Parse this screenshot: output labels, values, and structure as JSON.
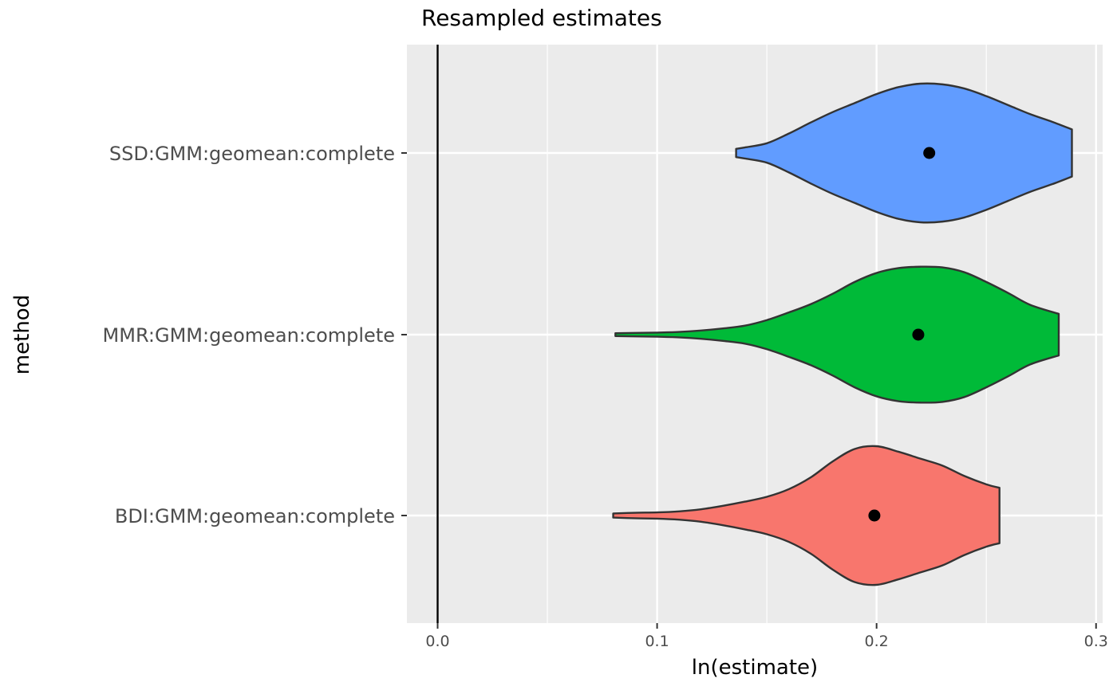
{
  "chart_data": {
    "type": "violin",
    "orientation": "horizontal",
    "title": "Resampled estimates",
    "xlabel": "ln(estimate)",
    "ylabel": "method",
    "xlim": [
      -0.014,
      0.303
    ],
    "x_ticks": [
      0.0,
      0.1,
      0.2,
      0.3
    ],
    "x_tick_labels": [
      "0.0",
      "0.1",
      "0.2",
      "0.3"
    ],
    "reference_line_x": 0.0,
    "grid": true,
    "legend": "none",
    "panel_background": "#EBEBEB",
    "grid_color": "#FFFFFF",
    "outline_color": "#333333",
    "series": [
      {
        "category": "SSD:GMM:geomean:complete",
        "color": "#619CFF",
        "point": 0.224,
        "density": [
          [
            0.136,
            0.06
          ],
          [
            0.14,
            0.08
          ],
          [
            0.15,
            0.14
          ],
          [
            0.16,
            0.28
          ],
          [
            0.17,
            0.44
          ],
          [
            0.18,
            0.59
          ],
          [
            0.19,
            0.72
          ],
          [
            0.2,
            0.85
          ],
          [
            0.21,
            0.95
          ],
          [
            0.22,
            1.0
          ],
          [
            0.23,
            0.99
          ],
          [
            0.24,
            0.93
          ],
          [
            0.25,
            0.82
          ],
          [
            0.26,
            0.69
          ],
          [
            0.27,
            0.56
          ],
          [
            0.28,
            0.45
          ],
          [
            0.289,
            0.34
          ]
        ]
      },
      {
        "category": "MMR:GMM:geomean:complete",
        "color": "#00BA38",
        "point": 0.219,
        "density": [
          [
            0.081,
            0.02
          ],
          [
            0.09,
            0.025
          ],
          [
            0.1,
            0.03
          ],
          [
            0.11,
            0.04
          ],
          [
            0.12,
            0.06
          ],
          [
            0.13,
            0.09
          ],
          [
            0.14,
            0.13
          ],
          [
            0.15,
            0.21
          ],
          [
            0.16,
            0.32
          ],
          [
            0.17,
            0.44
          ],
          [
            0.18,
            0.59
          ],
          [
            0.19,
            0.76
          ],
          [
            0.2,
            0.89
          ],
          [
            0.21,
            0.96
          ],
          [
            0.22,
            0.98
          ],
          [
            0.23,
            0.97
          ],
          [
            0.24,
            0.9
          ],
          [
            0.25,
            0.76
          ],
          [
            0.26,
            0.6
          ],
          [
            0.27,
            0.43
          ],
          [
            0.283,
            0.3
          ]
        ]
      },
      {
        "category": "BDI:GMM:geomean:complete",
        "color": "#F8766D",
        "point": 0.199,
        "density": [
          [
            0.08,
            0.03
          ],
          [
            0.09,
            0.04
          ],
          [
            0.1,
            0.045
          ],
          [
            0.11,
            0.06
          ],
          [
            0.12,
            0.09
          ],
          [
            0.13,
            0.14
          ],
          [
            0.14,
            0.2
          ],
          [
            0.15,
            0.27
          ],
          [
            0.16,
            0.38
          ],
          [
            0.17,
            0.55
          ],
          [
            0.18,
            0.78
          ],
          [
            0.19,
            0.96
          ],
          [
            0.2,
            1.0
          ],
          [
            0.21,
            0.92
          ],
          [
            0.22,
            0.82
          ],
          [
            0.23,
            0.72
          ],
          [
            0.24,
            0.57
          ],
          [
            0.25,
            0.45
          ],
          [
            0.256,
            0.4
          ]
        ]
      }
    ]
  }
}
